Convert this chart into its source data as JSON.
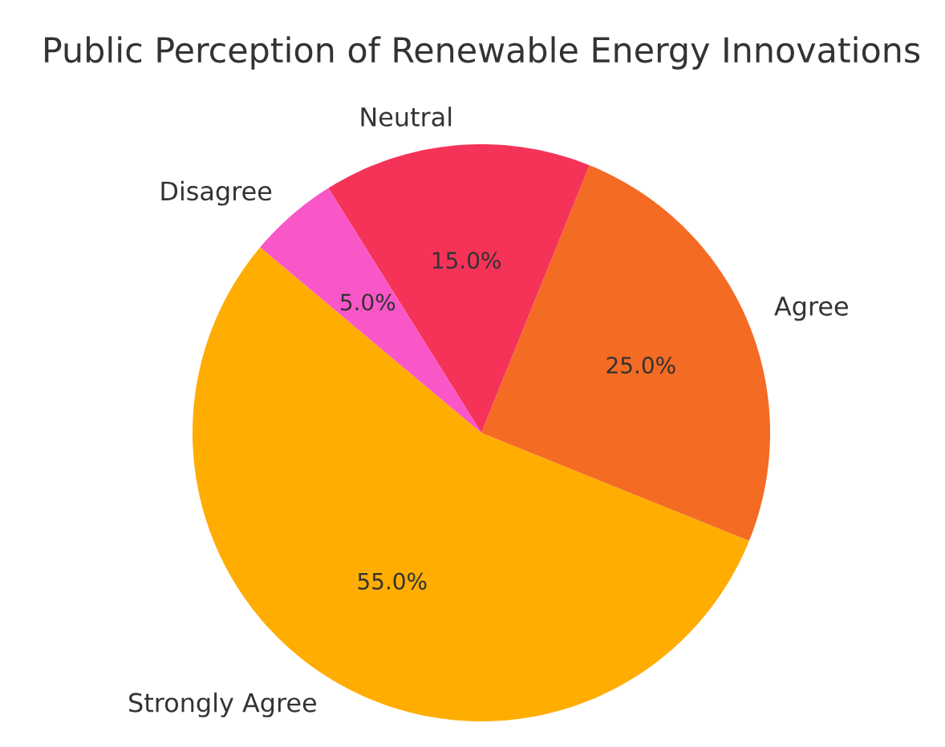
{
  "chart_data": {
    "type": "pie",
    "title": "Public Perception of Renewable Energy Innovations",
    "categories": [
      "Strongly Agree",
      "Agree",
      "Neutral",
      "Disagree"
    ],
    "values": [
      55,
      25,
      15,
      5
    ],
    "colors": [
      "#ffad00",
      "#f46b24",
      "#f53358",
      "#f957c8"
    ],
    "value_labels": [
      "55.0%",
      "25.0%",
      "15.0%",
      "5.0%"
    ]
  }
}
